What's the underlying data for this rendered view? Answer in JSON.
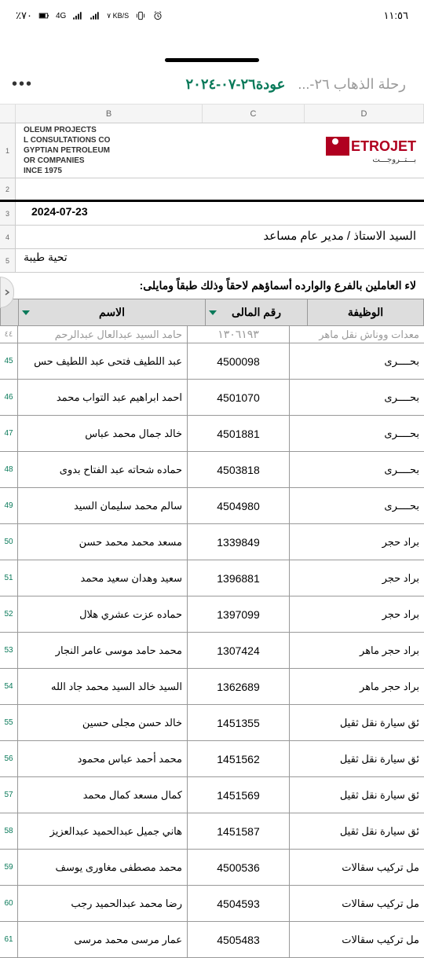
{
  "status": {
    "battery": "٪٧٠",
    "network": "4G",
    "kbs": "٧ KB/S",
    "time": "١١:٥٦"
  },
  "tabs": {
    "inactive": "رحلة الذهاب ٢٦-...",
    "active": "عودة٢٦-٠٧-٢٠٢٤"
  },
  "columns": [
    "B",
    "C",
    "D"
  ],
  "company": {
    "line1": "OLEUM PROJECTS",
    "line2": "L CONSULTATIONS CO",
    "line3": "GYPTIAN PETROLEUM",
    "line4": "OR COMPANIES",
    "line5": "INCE 1975",
    "logo": "ETROJET",
    "logo_ar": "بـــتــروجـــت"
  },
  "meta": {
    "date": "2024-07-23",
    "title": "السيد الاستاذ / مدير عام مساعد",
    "greeting": "تحية طيبة",
    "intro": "لاء العاملين بالفرع والوارده أسماؤهم لاحقاً وذلك طبقاً ومايلى:"
  },
  "headers": {
    "name": "الاسم",
    "id": "رقم المالى",
    "job": "الوظيفة"
  },
  "partial_top": {
    "name": "حامد السيد عبدالعال عبدالرحم",
    "id": "١٣٠٦١٩٣",
    "job": "معدات ووناش نقل ماهر"
  },
  "rows": [
    {
      "n": "45",
      "name": "عبد اللطيف فتحى عبد اللطيف حس",
      "id": "4500098",
      "job": "بحــــرى"
    },
    {
      "n": "46",
      "name": "احمد ابراهيم عبد التواب محمد",
      "id": "4501070",
      "job": "بحــــرى"
    },
    {
      "n": "47",
      "name": "خالد جمال محمد عباس",
      "id": "4501881",
      "job": "بحــــرى"
    },
    {
      "n": "48",
      "name": "حماده شحاته عبد الفتاح بدوى",
      "id": "4503818",
      "job": "بحــــرى"
    },
    {
      "n": "49",
      "name": "سالم محمد سليمان السيد",
      "id": "4504980",
      "job": "بحــــرى"
    },
    {
      "n": "50",
      "name": "مسعد محمد محمد حسن",
      "id": "1339849",
      "job": "براد حجر"
    },
    {
      "n": "51",
      "name": "سعيد وهدان سعيد محمد",
      "id": "1396881",
      "job": "براد حجر"
    },
    {
      "n": "52",
      "name": "حماده عزت عشري هلال",
      "id": "1397099",
      "job": "براد حجر"
    },
    {
      "n": "53",
      "name": "محمد حامد موسى عامر النجار",
      "id": "1307424",
      "job": "براد حجر ماهر"
    },
    {
      "n": "54",
      "name": "السيد خالد السيد محمد جاد الله",
      "id": "1362689",
      "job": "براد حجر ماهر"
    },
    {
      "n": "55",
      "name": "خالد حسن مجلى حسين",
      "id": "1451355",
      "job": "ئق سيارة نقل ثقيل"
    },
    {
      "n": "56",
      "name": "محمد أحمد عباس محمود",
      "id": "1451562",
      "job": "ئق سيارة نقل ثقيل"
    },
    {
      "n": "57",
      "name": "كمال مسعد كمال محمد",
      "id": "1451569",
      "job": "ئق سيارة نقل ثقيل"
    },
    {
      "n": "58",
      "name": "هاني جميل عبدالحميد عبدالعزيز",
      "id": "1451587",
      "job": "ئق سيارة نقل ثقيل"
    },
    {
      "n": "59",
      "name": "محمد مصطفى مغاورى يوسف",
      "id": "4500536",
      "job": "مل تركيب سقالات"
    },
    {
      "n": "60",
      "name": "رضا محمد عبدالحميد رجب",
      "id": "4504593",
      "job": "مل تركيب سقالات"
    },
    {
      "n": "61",
      "name": "عمار مرسى محمد مرسى",
      "id": "4505483",
      "job": "مل تركيب سقالات"
    }
  ]
}
